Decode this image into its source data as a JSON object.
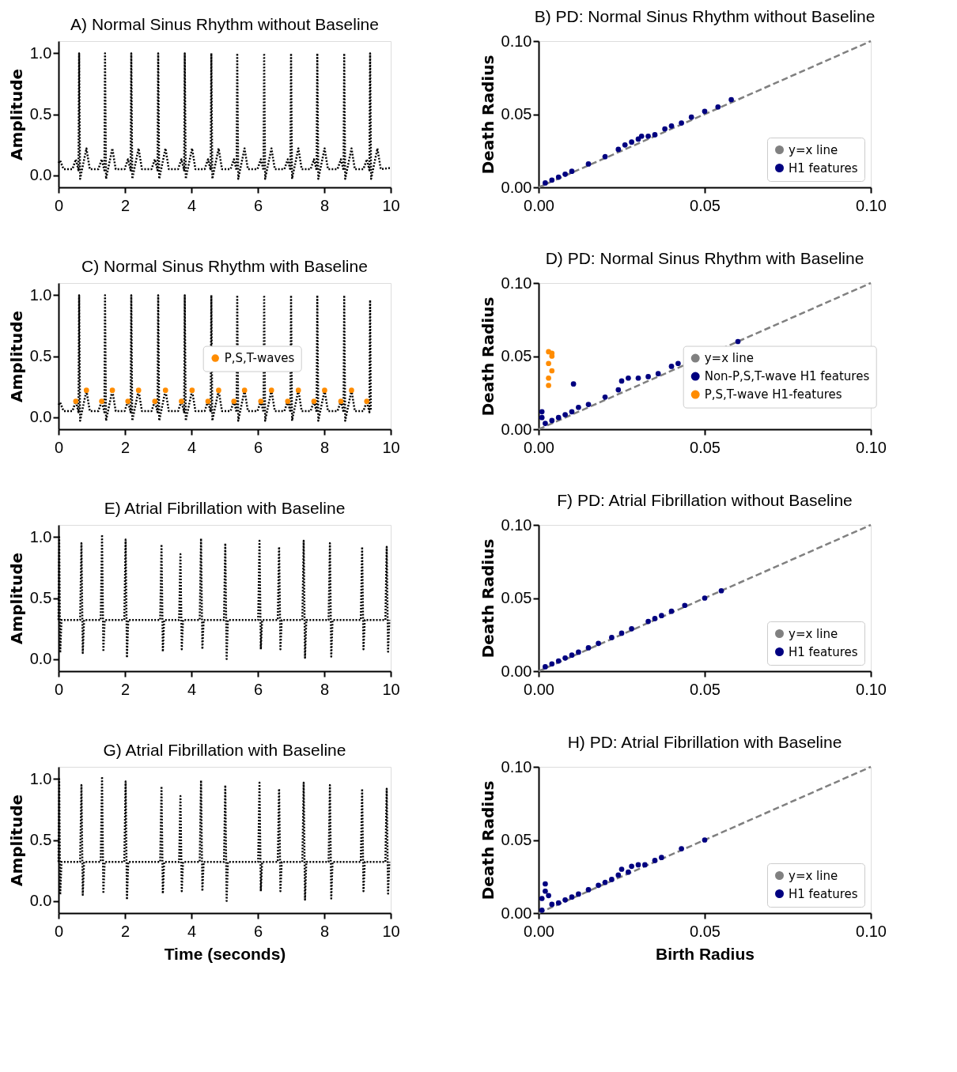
{
  "chart_data": [
    {
      "type": "line",
      "line_style": "dotted",
      "title": "A) Normal Sinus Rhythm without Baseline",
      "ylabel": "Amplitude",
      "xlim": [
        0,
        10
      ],
      "xticks": [
        0,
        2,
        4,
        6,
        8,
        10
      ],
      "ylim": [
        -0.1,
        1.1
      ],
      "yticks": [
        {
          "value": 0,
          "label": "0.0"
        },
        {
          "value": 0.5,
          "label": "0.5"
        },
        {
          "value": 1,
          "label": "1.0"
        }
      ],
      "series": [
        {
          "color": "#000000",
          "x": [
            0,
            0.05,
            0.15,
            0.42,
            0.52,
            0.6,
            0.62,
            0.65,
            0.84,
            0.94,
            1.2,
            1.3,
            1.38,
            1.4,
            1.43,
            1.62,
            1.72,
            1.99,
            2.09,
            2.17,
            2.19,
            2.22,
            2.41,
            2.51,
            2.8,
            2.9,
            2.98,
            3.0,
            3.03,
            3.22,
            3.32,
            3.6,
            3.7,
            3.78,
            3.8,
            3.83,
            4.02,
            4.12,
            4.4,
            4.5,
            4.58,
            4.6,
            4.63,
            4.82,
            4.92,
            5.18,
            5.28,
            5.36,
            5.38,
            5.41,
            5.6,
            5.7,
            5.99,
            6.09,
            6.17,
            6.19,
            6.22,
            6.41,
            6.51,
            6.8,
            6.9,
            6.98,
            7.0,
            7.03,
            7.22,
            7.32,
            7.59,
            7.69,
            7.77,
            7.79,
            7.82,
            8.01,
            8.11,
            8.4,
            8.5,
            8.58,
            8.6,
            8.63,
            8.82,
            8.92,
            9.18,
            9.28,
            9.36,
            9.38,
            9.41,
            9.6,
            9.7,
            10
          ],
          "values": [
            0.1,
            0.12,
            0.05,
            0.05,
            0.13,
            0.04,
            1.0,
            -0.03,
            0.22,
            0.05,
            0.05,
            0.13,
            0.04,
            1.0,
            -0.03,
            0.22,
            0.05,
            0.05,
            0.13,
            0.04,
            1.0,
            -0.03,
            0.22,
            0.05,
            0.05,
            0.13,
            0.04,
            1.0,
            -0.03,
            0.22,
            0.05,
            0.05,
            0.13,
            0.04,
            1.0,
            -0.03,
            0.22,
            0.05,
            0.05,
            0.13,
            0.04,
            1.0,
            -0.03,
            0.22,
            0.05,
            0.05,
            0.13,
            0.04,
            1.0,
            -0.03,
            0.22,
            0.05,
            0.05,
            0.13,
            0.04,
            1.0,
            -0.03,
            0.22,
            0.05,
            0.05,
            0.13,
            0.04,
            1.0,
            -0.03,
            0.22,
            0.05,
            0.05,
            0.13,
            0.04,
            1.0,
            -0.03,
            0.22,
            0.05,
            0.05,
            0.13,
            0.04,
            1.0,
            -0.03,
            0.22,
            0.05,
            0.05,
            0.13,
            0.04,
            1.0,
            -0.03,
            0.22,
            0.05,
            0.06
          ]
        }
      ]
    },
    {
      "type": "scatter",
      "title": "B) PD: Normal Sinus Rhythm without Baseline",
      "ylabel": "Death Radius",
      "xlim": [
        0,
        0.1
      ],
      "xticks": [
        {
          "value": 0,
          "label": "0.00"
        },
        {
          "value": 0.05,
          "label": "0.05"
        },
        {
          "value": 0.1,
          "label": "0.10"
        }
      ],
      "ylim": [
        0,
        0.1
      ],
      "yticks": [
        {
          "value": 0,
          "label": "0.00"
        },
        {
          "value": 0.05,
          "label": "0.05"
        },
        {
          "value": 0.1,
          "label": "0.10"
        }
      ],
      "legend": "bottom right",
      "series": [
        {
          "name": "y=x line",
          "type": "line",
          "line_style": "dashed",
          "color": "#808080",
          "x": [
            0,
            0.1
          ],
          "values": [
            0,
            0.1
          ]
        },
        {
          "name": "H1 features",
          "color": "#000080",
          "x": [
            0.002,
            0.004,
            0.006,
            0.008,
            0.01,
            0.015,
            0.02,
            0.024,
            0.026,
            0.028,
            0.03,
            0.031,
            0.033,
            0.035,
            0.038,
            0.04,
            0.043,
            0.046,
            0.05,
            0.054,
            0.058
          ],
          "values": [
            0.003,
            0.005,
            0.007,
            0.009,
            0.011,
            0.016,
            0.021,
            0.026,
            0.029,
            0.031,
            0.033,
            0.035,
            0.035,
            0.036,
            0.04,
            0.042,
            0.044,
            0.048,
            0.052,
            0.055,
            0.06
          ]
        }
      ]
    },
    {
      "type": "line",
      "line_style": "dotted",
      "title": "C) Normal Sinus Rhythm with Baseline",
      "ylabel": "Amplitude",
      "xlim": [
        0,
        10
      ],
      "xticks": [
        0,
        2,
        4,
        6,
        8,
        10
      ],
      "ylim": [
        -0.1,
        1.1
      ],
      "yticks": [
        {
          "value": 0,
          "label": "0.0"
        },
        {
          "value": 0.5,
          "label": "0.5"
        },
        {
          "value": 1,
          "label": "1.0"
        }
      ],
      "legend": "right",
      "series": [
        {
          "color": "#000000",
          "x": [
            0,
            0.05,
            0.15,
            0.42,
            0.52,
            0.6,
            0.62,
            0.65,
            0.84,
            0.94,
            1.2,
            1.3,
            1.38,
            1.4,
            1.43,
            1.62,
            1.72,
            1.99,
            2.09,
            2.17,
            2.19,
            2.22,
            2.41,
            2.51,
            2.8,
            2.9,
            2.98,
            3.0,
            3.03,
            3.22,
            3.32,
            3.6,
            3.7,
            3.78,
            3.8,
            3.83,
            4.02,
            4.12,
            4.4,
            4.5,
            4.58,
            4.6,
            4.63,
            4.82,
            4.92,
            5.18,
            5.28,
            5.36,
            5.38,
            5.41,
            5.6,
            5.7,
            5.99,
            6.09,
            6.17,
            6.19,
            6.22,
            6.41,
            6.51,
            6.8,
            6.9,
            6.98,
            7.0,
            7.03,
            7.22,
            7.32,
            7.59,
            7.69,
            7.77,
            7.79,
            7.82,
            8.01,
            8.11,
            8.4,
            8.5,
            8.58,
            8.6,
            8.63,
            8.82,
            8.92,
            9.18,
            9.28,
            9.36,
            9.38,
            9.4
          ],
          "values": [
            0.1,
            0.12,
            0.05,
            0.05,
            0.13,
            0.04,
            1.0,
            -0.03,
            0.22,
            0.05,
            0.05,
            0.13,
            0.04,
            1.0,
            -0.03,
            0.22,
            0.05,
            0.05,
            0.13,
            0.04,
            1.0,
            -0.03,
            0.22,
            0.05,
            0.05,
            0.13,
            0.04,
            1.0,
            -0.03,
            0.22,
            0.05,
            0.05,
            0.13,
            0.04,
            1.0,
            -0.03,
            0.22,
            0.05,
            0.05,
            0.13,
            0.04,
            1.0,
            -0.03,
            0.22,
            0.05,
            0.05,
            0.13,
            0.04,
            1.0,
            -0.03,
            0.22,
            0.05,
            0.05,
            0.13,
            0.04,
            1.0,
            -0.03,
            0.22,
            0.05,
            0.05,
            0.13,
            0.04,
            1.0,
            -0.03,
            0.22,
            0.05,
            0.05,
            0.13,
            0.04,
            1.0,
            -0.03,
            0.22,
            0.05,
            0.05,
            0.13,
            0.04,
            1.0,
            -0.03,
            0.22,
            0.05,
            0.05,
            0.13,
            0.04,
            0.96,
            0.05
          ]
        },
        {
          "name": "P,S,T-waves",
          "type": "scatter",
          "color": "#ff8c00",
          "x": [
            0.52,
            0.84,
            1.3,
            1.62,
            2.09,
            2.41,
            2.9,
            3.22,
            3.7,
            4.02,
            4.5,
            4.82,
            5.28,
            5.6,
            6.09,
            6.41,
            6.9,
            7.22,
            7.69,
            8.01,
            8.5,
            8.82,
            9.28
          ],
          "values": [
            0.13,
            0.22,
            0.13,
            0.22,
            0.13,
            0.22,
            0.13,
            0.22,
            0.13,
            0.22,
            0.13,
            0.22,
            0.13,
            0.22,
            0.13,
            0.22,
            0.13,
            0.22,
            0.13,
            0.22,
            0.13,
            0.22,
            0.13
          ]
        }
      ]
    },
    {
      "type": "scatter",
      "title": "D) PD: Normal Sinus Rhythm with Baseline",
      "ylabel": "Death Radius",
      "xlim": [
        0,
        0.1
      ],
      "xticks": [
        {
          "value": 0,
          "label": "0.00"
        },
        {
          "value": 0.05,
          "label": "0.05"
        },
        {
          "value": 0.1,
          "label": "0.10"
        }
      ],
      "ylim": [
        0,
        0.1
      ],
      "yticks": [
        {
          "value": 0,
          "label": "0.00"
        },
        {
          "value": 0.05,
          "label": "0.05"
        },
        {
          "value": 0.1,
          "label": "0.10"
        }
      ],
      "legend": "right",
      "series": [
        {
          "name": "y=x line",
          "type": "line",
          "line_style": "dashed",
          "color": "#808080",
          "x": [
            0,
            0.1
          ],
          "values": [
            0,
            0.1
          ]
        },
        {
          "name": "Non-P,S,T-wave H1 features",
          "color": "#000080",
          "x": [
            0.001,
            0.001,
            0.002,
            0.004,
            0.006,
            0.008,
            0.01,
            0.012,
            0.0105,
            0.015,
            0.02,
            0.024,
            0.025,
            0.027,
            0.03,
            0.033,
            0.036,
            0.04,
            0.042,
            0.06
          ],
          "values": [
            0.008,
            0.012,
            0.004,
            0.006,
            0.008,
            0.01,
            0.012,
            0.015,
            0.031,
            0.017,
            0.022,
            0.027,
            0.033,
            0.035,
            0.035,
            0.036,
            0.038,
            0.043,
            0.045,
            0.06
          ]
        },
        {
          "name": "P,S,T-wave H1-features",
          "color": "#ff8c00",
          "x": [
            0.003,
            0.003,
            0.004,
            0.003,
            0.004,
            0.003,
            0.004
          ],
          "values": [
            0.03,
            0.035,
            0.04,
            0.045,
            0.05,
            0.053,
            0.052
          ]
        }
      ]
    },
    {
      "type": "line",
      "line_style": "dotted",
      "title": "E) Atrial Fibrillation with Baseline",
      "ylabel": "Amplitude",
      "xlim": [
        0,
        10
      ],
      "xticks": [
        0,
        2,
        4,
        6,
        8,
        10
      ],
      "ylim": [
        -0.1,
        1.1
      ],
      "yticks": [
        {
          "value": 0,
          "label": "0.0"
        },
        {
          "value": 0.5,
          "label": "0.5"
        },
        {
          "value": 1,
          "label": "1.0"
        }
      ],
      "series": [
        {
          "color": "#000000",
          "x": [
            0,
            0.02,
            0.05,
            0.09,
            0.65,
            0.69,
            0.73,
            0.77,
            1.27,
            1.31,
            1.35,
            1.39,
            1.98,
            2.02,
            2.06,
            2.1,
            3.06,
            3.1,
            3.14,
            3.18,
            3.63,
            3.67,
            3.71,
            3.75,
            4.25,
            4.29,
            4.33,
            4.37,
            4.98,
            5.02,
            5.06,
            5.1,
            6.01,
            6.05,
            6.09,
            6.13,
            6.6,
            6.64,
            6.68,
            6.72,
            7.34,
            7.38,
            7.42,
            7.46,
            8.13,
            8.17,
            8.21,
            8.25,
            9.1,
            9.14,
            9.18,
            9.22,
            9.84,
            9.88,
            9.92,
            9.96
          ],
          "values": [
            0.32,
            1.0,
            0.05,
            0.32,
            0.32,
            0.95,
            0.05,
            0.32,
            0.32,
            1.02,
            0.06,
            0.32,
            0.32,
            0.98,
            0.01,
            0.32,
            0.32,
            0.94,
            0.06,
            0.32,
            0.32,
            0.86,
            0.08,
            0.32,
            0.32,
            0.99,
            0.08,
            0.32,
            0.32,
            0.95,
            0.0,
            0.32,
            0.32,
            0.97,
            0.08,
            0.32,
            0.32,
            0.92,
            0.08,
            0.32,
            0.32,
            0.97,
            0.01,
            0.32,
            0.32,
            0.95,
            0.02,
            0.32,
            0.32,
            0.92,
            0.08,
            0.32,
            0.32,
            0.92,
            0.06,
            0.32
          ]
        }
      ]
    },
    {
      "type": "scatter",
      "title": "F) PD: Atrial Fibrillation without Baseline",
      "ylabel": "Death Radius",
      "xlim": [
        0,
        0.1
      ],
      "xticks": [
        {
          "value": 0,
          "label": "0.00"
        },
        {
          "value": 0.05,
          "label": "0.05"
        },
        {
          "value": 0.1,
          "label": "0.10"
        }
      ],
      "ylim": [
        0,
        0.1
      ],
      "yticks": [
        {
          "value": 0,
          "label": "0.00"
        },
        {
          "value": 0.05,
          "label": "0.05"
        },
        {
          "value": 0.1,
          "label": "0.10"
        }
      ],
      "legend": "bottom right",
      "series": [
        {
          "name": "y=x line",
          "type": "line",
          "line_style": "dashed",
          "color": "#808080",
          "x": [
            0,
            0.1
          ],
          "values": [
            0,
            0.1
          ]
        },
        {
          "name": "H1 features",
          "color": "#000080",
          "x": [
            0.002,
            0.004,
            0.006,
            0.008,
            0.01,
            0.012,
            0.015,
            0.018,
            0.022,
            0.025,
            0.028,
            0.033,
            0.035,
            0.037,
            0.04,
            0.044,
            0.05,
            0.055
          ],
          "values": [
            0.003,
            0.005,
            0.007,
            0.009,
            0.011,
            0.013,
            0.016,
            0.019,
            0.023,
            0.026,
            0.029,
            0.034,
            0.036,
            0.038,
            0.041,
            0.045,
            0.05,
            0.055
          ]
        }
      ]
    },
    {
      "type": "line",
      "line_style": "dotted",
      "title": "G) Atrial Fibrillation with Baseline",
      "xlabel": "Time (seconds)",
      "ylabel": "Amplitude",
      "xlim": [
        0,
        10
      ],
      "xticks": [
        0,
        2,
        4,
        6,
        8,
        10
      ],
      "ylim": [
        -0.1,
        1.1
      ],
      "yticks": [
        {
          "value": 0,
          "label": "0.0"
        },
        {
          "value": 0.5,
          "label": "0.5"
        },
        {
          "value": 1,
          "label": "1.0"
        }
      ],
      "series": [
        {
          "color": "#000000",
          "x": [
            0,
            0.02,
            0.05,
            0.09,
            0.65,
            0.69,
            0.73,
            0.77,
            1.27,
            1.31,
            1.35,
            1.39,
            1.98,
            2.02,
            2.06,
            2.1,
            3.06,
            3.1,
            3.14,
            3.18,
            3.63,
            3.67,
            3.71,
            3.75,
            4.25,
            4.29,
            4.33,
            4.37,
            4.98,
            5.02,
            5.06,
            5.1,
            6.01,
            6.05,
            6.09,
            6.13,
            6.6,
            6.64,
            6.68,
            6.72,
            7.34,
            7.38,
            7.42,
            7.46,
            8.13,
            8.17,
            8.21,
            8.25,
            9.1,
            9.14,
            9.18,
            9.22,
            9.84,
            9.88,
            9.92,
            9.96
          ],
          "values": [
            0.32,
            1.0,
            0.05,
            0.32,
            0.32,
            0.95,
            0.05,
            0.32,
            0.32,
            1.02,
            0.06,
            0.32,
            0.32,
            0.98,
            0.01,
            0.32,
            0.32,
            0.94,
            0.06,
            0.32,
            0.32,
            0.86,
            0.08,
            0.32,
            0.32,
            0.99,
            0.08,
            0.32,
            0.32,
            0.95,
            0.0,
            0.32,
            0.32,
            0.97,
            0.08,
            0.32,
            0.32,
            0.92,
            0.08,
            0.32,
            0.32,
            0.97,
            0.01,
            0.32,
            0.32,
            0.95,
            0.02,
            0.32,
            0.32,
            0.92,
            0.08,
            0.32,
            0.32,
            0.92,
            0.06,
            0.32
          ]
        }
      ]
    },
    {
      "type": "scatter",
      "title": "H) PD: Atrial Fibrillation with Baseline",
      "xlabel": "Birth Radius",
      "ylabel": "Death Radius",
      "xlim": [
        0,
        0.1
      ],
      "xticks": [
        {
          "value": 0,
          "label": "0.00"
        },
        {
          "value": 0.05,
          "label": "0.05"
        },
        {
          "value": 0.1,
          "label": "0.10"
        }
      ],
      "ylim": [
        0,
        0.1
      ],
      "yticks": [
        {
          "value": 0,
          "label": "0.00"
        },
        {
          "value": 0.05,
          "label": "0.05"
        },
        {
          "value": 0.1,
          "label": "0.10"
        }
      ],
      "legend": "bottom right",
      "series": [
        {
          "name": "y=x line",
          "type": "line",
          "line_style": "dashed",
          "color": "#808080",
          "x": [
            0,
            0.1
          ],
          "values": [
            0,
            0.1
          ]
        },
        {
          "name": "H1 features",
          "color": "#000080",
          "x": [
            0.001,
            0.001,
            0.002,
            0.002,
            0.003,
            0.004,
            0.006,
            0.008,
            0.01,
            0.012,
            0.015,
            0.018,
            0.02,
            0.022,
            0.024,
            0.025,
            0.027,
            0.028,
            0.03,
            0.032,
            0.035,
            0.037,
            0.043,
            0.05
          ],
          "values": [
            0.002,
            0.01,
            0.015,
            0.02,
            0.012,
            0.006,
            0.007,
            0.009,
            0.011,
            0.013,
            0.016,
            0.019,
            0.021,
            0.023,
            0.026,
            0.03,
            0.028,
            0.032,
            0.033,
            0.033,
            0.036,
            0.038,
            0.044,
            0.05
          ]
        }
      ]
    }
  ]
}
